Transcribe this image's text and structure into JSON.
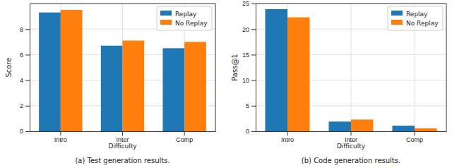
{
  "chart_data": [
    {
      "type": "bar",
      "title": "(a) Test generation results.",
      "x_label": "Difficulty",
      "y_label": "Score",
      "categories": [
        "Intro",
        "Inter",
        "Comp"
      ],
      "series": [
        {
          "name": "Replay",
          "color": "#1f77b4",
          "values": [
            9.3,
            6.7,
            6.5
          ]
        },
        {
          "name": "No Replay",
          "color": "#ff7f0e",
          "values": [
            9.5,
            7.1,
            7.0
          ]
        }
      ],
      "ylim": [
        0,
        10
      ],
      "yticks": [
        0,
        2,
        4,
        6,
        8
      ],
      "grid": true,
      "legend": "upper right"
    },
    {
      "type": "bar",
      "title": "(b) Code generation results.",
      "x_label": "Difficulty",
      "y_label": "Pass@1",
      "categories": [
        "Intro",
        "Inter",
        "Comp"
      ],
      "series": [
        {
          "name": "Replay",
          "color": "#1f77b4",
          "values": [
            23.9,
            1.9,
            1.1
          ]
        },
        {
          "name": "No Replay",
          "color": "#ff7f0e",
          "values": [
            22.3,
            2.3,
            0.6
          ]
        }
      ],
      "ylim": [
        0,
        25
      ],
      "yticks": [
        0,
        5,
        10,
        15,
        20,
        25
      ],
      "grid": true,
      "legend": "upper right"
    }
  ]
}
